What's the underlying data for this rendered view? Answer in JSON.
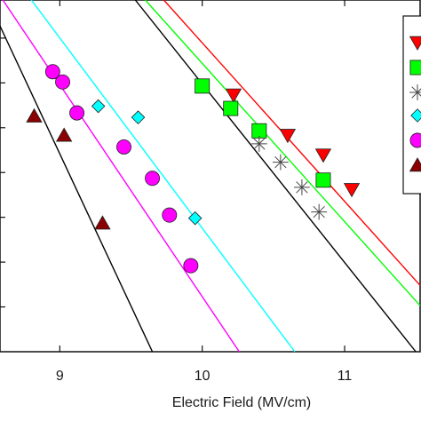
{
  "chart_data": {
    "type": "scatter",
    "xlabel": "Electric Field (MV/cm)",
    "ylabel": "",
    "xlim": [
      8.58,
      11.53
    ],
    "ylim": [
      0,
      7.85
    ],
    "x_ticks": [
      9,
      10,
      11
    ],
    "x_tick_labels": [
      "9",
      "10",
      "11"
    ],
    "legend_position": "top-right",
    "legend_entries": 6,
    "series": [
      {
        "marker": "triangle-down",
        "color": "#ff0000",
        "points": [
          [
            10.22,
            5.73
          ],
          [
            10.6,
            4.83
          ],
          [
            10.85,
            4.39
          ],
          [
            11.05,
            3.62
          ]
        ],
        "fit": [
          [
            9.73,
            7.85
          ],
          [
            11.53,
            1.48
          ]
        ]
      },
      {
        "marker": "square",
        "color": "#00ff00",
        "points": [
          [
            10.0,
            5.93
          ],
          [
            10.2,
            5.43
          ],
          [
            10.4,
            4.93
          ],
          [
            10.85,
            3.83
          ]
        ],
        "fit": [
          [
            9.6,
            7.85
          ],
          [
            11.53,
            1.03
          ]
        ]
      },
      {
        "marker": "asterisk",
        "color": "#444444",
        "points": [
          [
            10.4,
            4.64
          ],
          [
            10.55,
            4.23
          ],
          [
            10.7,
            3.67
          ],
          [
            10.82,
            3.12
          ]
        ],
        "fit": [
          [
            9.53,
            7.85
          ],
          [
            11.5,
            0.0
          ]
        ]
      },
      {
        "marker": "diamond",
        "color": "#00ffff",
        "points": [
          [
            9.27,
            5.48
          ],
          [
            9.55,
            5.23
          ],
          [
            9.95,
            2.98
          ]
        ],
        "fit": [
          [
            8.8,
            7.85
          ],
          [
            10.65,
            0.0
          ]
        ]
      },
      {
        "marker": "circle",
        "color": "#ff00ff",
        "points": [
          [
            8.95,
            6.25
          ],
          [
            9.02,
            6.02
          ],
          [
            9.12,
            5.33
          ],
          [
            9.45,
            4.57
          ],
          [
            9.65,
            3.87
          ],
          [
            9.77,
            3.05
          ],
          [
            9.92,
            1.92
          ]
        ],
        "fit": [
          [
            8.6,
            7.85
          ],
          [
            10.26,
            0.0
          ]
        ]
      },
      {
        "marker": "triangle-up",
        "color": "#8b0000",
        "points": [
          [
            8.82,
            5.26
          ],
          [
            9.03,
            4.83
          ],
          [
            9.3,
            2.87
          ]
        ],
        "fit": [
          [
            8.58,
            7.27
          ],
          [
            9.65,
            0.0
          ]
        ]
      }
    ]
  }
}
